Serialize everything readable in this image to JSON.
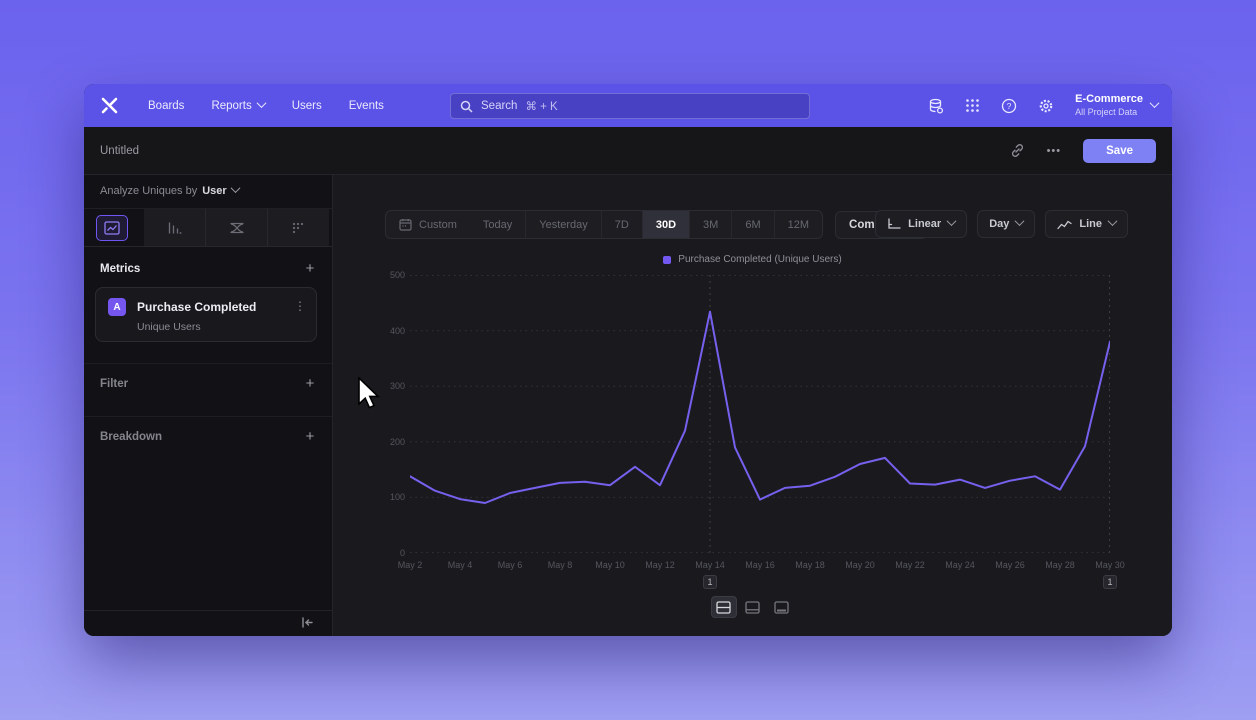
{
  "topnav": {
    "items": [
      {
        "label": "Boards",
        "chevron": false
      },
      {
        "label": "Reports",
        "chevron": true
      },
      {
        "label": "Users",
        "chevron": false
      },
      {
        "label": "Events",
        "chevron": false
      }
    ],
    "search": {
      "label": "Search",
      "shortcut": "⌘ + K"
    },
    "project": {
      "name": "E-Commerce",
      "scope": "All Project Data"
    }
  },
  "titlebar": {
    "title": "Untitled",
    "menu": "•••",
    "save_label": "Save"
  },
  "sidebar": {
    "analyze": {
      "prefix": "Analyze Uniques by",
      "value": "User"
    },
    "metrics": {
      "header": "Metrics",
      "add": "+",
      "items": [
        {
          "badge": "A",
          "name": "Purchase Completed",
          "measure": "Unique Users",
          "menu": "⋮"
        }
      ]
    },
    "filter": {
      "header": "Filter",
      "add": "+"
    },
    "breakdown": {
      "header": "Breakdown",
      "add": "+"
    }
  },
  "toolbar": {
    "custom_label": "Custom",
    "ranges": [
      "Today",
      "Yesterday",
      "7D",
      "30D",
      "3M",
      "6M",
      "12M"
    ],
    "selected_range": "30D",
    "compare_label": "Compare",
    "scale_label": "Linear",
    "interval_label": "Day",
    "chart_type_label": "Line"
  },
  "chart_data": {
    "type": "line",
    "title": "",
    "xlabel": "",
    "ylabel": "",
    "ylim": [
      0,
      500
    ],
    "yticks": [
      0,
      100,
      200,
      300,
      400,
      500
    ],
    "grid": "dotted-horizontal",
    "legend_position": "top-center",
    "x_tick_every": 2,
    "x": [
      "May 2",
      "May 3",
      "May 4",
      "May 5",
      "May 6",
      "May 7",
      "May 8",
      "May 9",
      "May 10",
      "May 11",
      "May 12",
      "May 13",
      "May 14",
      "May 15",
      "May 16",
      "May 17",
      "May 18",
      "May 19",
      "May 20",
      "May 21",
      "May 22",
      "May 23",
      "May 24",
      "May 25",
      "May 26",
      "May 27",
      "May 28",
      "May 29",
      "May 30"
    ],
    "series": [
      {
        "name": "Purchase Completed (Unique Users)",
        "color": "#7561ee",
        "values": [
          138,
          112,
          97,
          90,
          108,
          117,
          126,
          128,
          122,
          155,
          122,
          220,
          434,
          190,
          96,
          117,
          121,
          137,
          160,
          171,
          125,
          123,
          132,
          117,
          130,
          138,
          114,
          192,
          380
        ]
      }
    ],
    "legend": [
      {
        "label": "Purchase Completed (Unique Users)",
        "color": "#7458f2"
      }
    ],
    "annotations": [
      {
        "x": "May 14",
        "count": "1"
      },
      {
        "x": "May 30",
        "count": "1"
      }
    ]
  }
}
